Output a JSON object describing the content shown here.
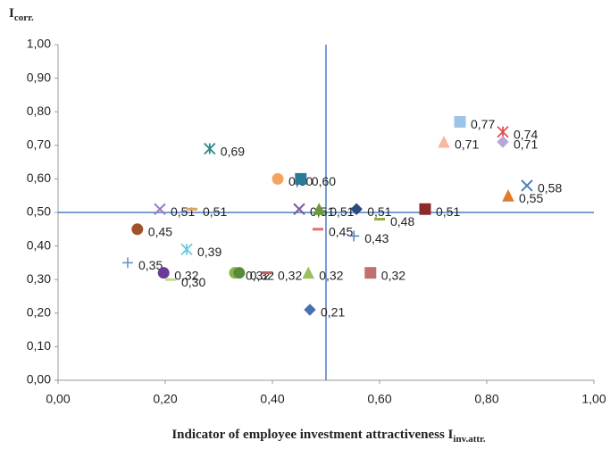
{
  "chart_data": {
    "type": "scatter",
    "ylabel": "I",
    "ylabel_sub": "corr.",
    "xlabel": "Indicator of employee investment attractiveness I",
    "xlabel_sub": "inv.attr.",
    "xlim": [
      0,
      1
    ],
    "ylim": [
      0,
      1
    ],
    "xticks": [
      {
        "value": 0,
        "label": "0,00"
      },
      {
        "value": 0.2,
        "label": "0,20"
      },
      {
        "value": 0.4,
        "label": "0,40"
      },
      {
        "value": 0.6,
        "label": "0,60"
      },
      {
        "value": 0.8,
        "label": "0,80"
      },
      {
        "value": 1,
        "label": "1,00"
      }
    ],
    "yticks": [
      {
        "value": 0,
        "label": "0,00"
      },
      {
        "value": 0.1,
        "label": "0,10"
      },
      {
        "value": 0.2,
        "label": "0,20"
      },
      {
        "value": 0.3,
        "label": "0,30"
      },
      {
        "value": 0.4,
        "label": "0,40"
      },
      {
        "value": 0.5,
        "label": "0,50"
      },
      {
        "value": 0.6,
        "label": "0,60"
      },
      {
        "value": 0.7,
        "label": "0,70"
      },
      {
        "value": 0.8,
        "label": "0,80"
      },
      {
        "value": 0.9,
        "label": "0,90"
      },
      {
        "value": 1,
        "label": "1,00"
      }
    ],
    "reference_lines": {
      "x": 0.5,
      "y": 0.5,
      "color": "#4a7ec0"
    },
    "x": [
      0.283,
      0.75,
      0.83,
      0.72,
      0.83,
      0.41,
      0.453,
      0.875,
      0.84,
      0.19,
      0.25,
      0.45,
      0.487,
      0.557,
      0.6,
      0.685,
      0.148,
      0.485,
      0.552,
      0.24,
      0.13,
      0.197,
      0.21,
      0.33,
      0.338,
      0.39,
      0.467,
      0.583,
      0.47
    ],
    "values": [
      0.69,
      0.77,
      0.74,
      0.71,
      0.71,
      0.6,
      0.6,
      0.58,
      0.55,
      0.51,
      0.51,
      0.51,
      0.51,
      0.51,
      0.48,
      0.51,
      0.45,
      0.45,
      0.43,
      0.39,
      0.35,
      0.32,
      0.3,
      0.32,
      0.32,
      0.32,
      0.32,
      0.32,
      0.21
    ],
    "value_labels": [
      "0,69",
      "0,77",
      "0,74",
      "0,71",
      "0,71",
      "0,60",
      "0,60",
      "0,58",
      "0,55",
      "0,51",
      "0,51",
      "0,51",
      "0,51",
      "0,51",
      "0,48",
      "0,51",
      "0,45",
      "0,45",
      "0,43",
      "0,39",
      "0,35",
      "0,32",
      "0,30",
      "0,32",
      "0,32",
      "0,32",
      "0,32",
      "0,32",
      "0,21"
    ],
    "colors": [
      "#2e8b8b",
      "#9dc3e6",
      "#e05050",
      "#f8b8a0",
      "#b8a8d8",
      "#f4a460",
      "#2a7a9a",
      "#4a7ec0",
      "#e07b29",
      "#9b7bc4",
      "#e0a060",
      "#7a5aa0",
      "#6a9a3a",
      "#2a4a80",
      "#90b040",
      "#8b2a2a",
      "#a0522d",
      "#e07070",
      "#4a7ec0",
      "#6ac8e0",
      "#6a8ac8",
      "#6a3a9a",
      "#c0d890",
      "#8ab050",
      "#5a8a3a",
      "#c06060",
      "#9ac060",
      "#c07070",
      "#4a70b0"
    ],
    "markers": [
      "asterisk",
      "square",
      "asterisk",
      "triangle",
      "diamond",
      "circle",
      "square",
      "x",
      "triangle",
      "x",
      "dash",
      "x",
      "triangle",
      "diamond",
      "dash",
      "square",
      "circle",
      "dash",
      "plus",
      "asterisk",
      "plus",
      "circle",
      "dash",
      "circle",
      "circle",
      "dash",
      "triangle",
      "square",
      "diamond"
    ]
  }
}
